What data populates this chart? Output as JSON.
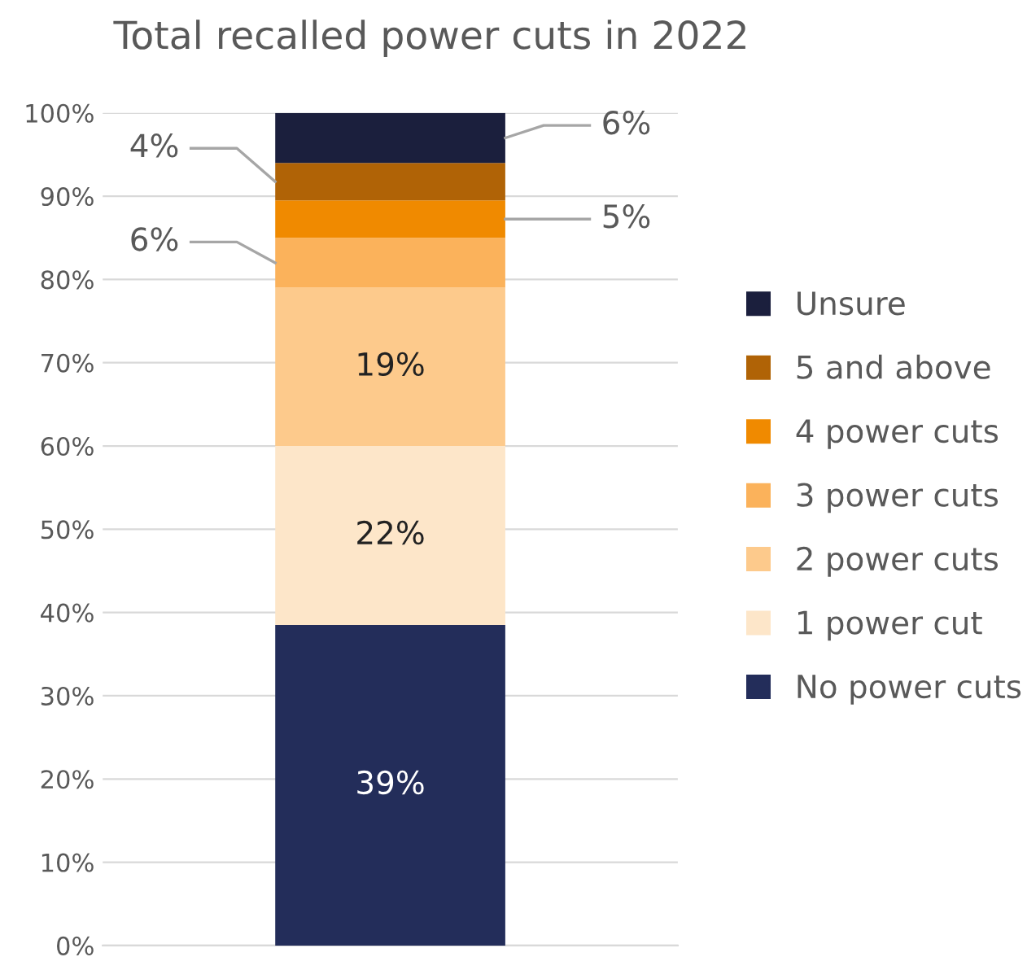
{
  "chart_data": {
    "type": "bar",
    "stacked": true,
    "title": "Total recalled power cuts in 2022",
    "categories": [
      null
    ],
    "series": [
      {
        "name": "No power cuts",
        "color": "#232d5a",
        "values": [
          38.5
        ],
        "value_labels": [
          "39%"
        ]
      },
      {
        "name": "1 power cut",
        "color": "#fde6c9",
        "values": [
          21.5
        ],
        "value_labels": [
          "22%"
        ]
      },
      {
        "name": "2 power cuts",
        "color": "#fdca8c",
        "values": [
          19
        ],
        "value_labels": [
          "19%"
        ]
      },
      {
        "name": "3 power cuts",
        "color": "#fbb25b",
        "values": [
          6
        ],
        "value_labels": [
          "6%"
        ]
      },
      {
        "name": "4 power cuts",
        "color": "#f08a00",
        "values": [
          4.5
        ],
        "value_labels": [
          "5%"
        ]
      },
      {
        "name": "5 and above",
        "color": "#b06306",
        "values": [
          4.5
        ],
        "value_labels": [
          "4%"
        ]
      },
      {
        "name": "Unsure",
        "color": "#1b1f3d",
        "values": [
          6
        ],
        "value_labels": [
          "6%"
        ]
      }
    ],
    "ylim": [
      0,
      100
    ],
    "yticks": [
      {
        "value": 0,
        "label": "0%"
      },
      {
        "value": 10,
        "label": "10%"
      },
      {
        "value": 20,
        "label": "20%"
      },
      {
        "value": 30,
        "label": "30%"
      },
      {
        "value": 40,
        "label": "40%"
      },
      {
        "value": 50,
        "label": "50%"
      },
      {
        "value": 60,
        "label": "60%"
      },
      {
        "value": 70,
        "label": "70%"
      },
      {
        "value": 80,
        "label": "80%"
      },
      {
        "value": 90,
        "label": "90%"
      },
      {
        "value": 100,
        "label": "100%"
      }
    ],
    "grid": "y",
    "legend": "right"
  }
}
